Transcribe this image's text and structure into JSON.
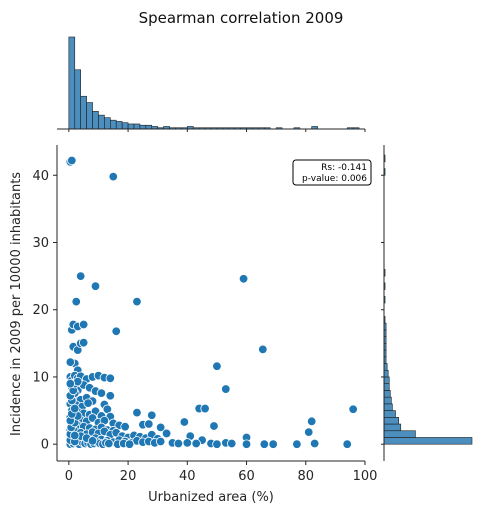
{
  "chart_data": {
    "type": "scatter",
    "title": "Spearman correlation 2009",
    "xlabel": "Urbanized area (%)",
    "ylabel": "Incidence in 2009 per 10000 inhabitants",
    "xlim": [
      -4,
      100
    ],
    "ylim": [
      -2.5,
      44.5
    ],
    "xticks": [
      0,
      20,
      40,
      60,
      80,
      100
    ],
    "yticks": [
      0,
      10,
      20,
      30,
      40
    ],
    "marginal_x": "histogram",
    "marginal_y": "histogram",
    "annotation": {
      "rs": "Rs: -0.141",
      "pvalue": "p-value: 0.006",
      "position": "top-right"
    },
    "colors": {
      "point": "#1f77b4",
      "bar": "#4c8fbf",
      "edge": "#ffffff"
    },
    "points": [
      [
        0.5,
        42
      ],
      [
        1.0,
        42.2
      ],
      [
        15,
        39.8
      ],
      [
        4,
        25
      ],
      [
        9,
        23.5
      ],
      [
        2.5,
        21.2
      ],
      [
        23,
        21.2
      ],
      [
        59,
        24.6
      ],
      [
        65.5,
        14.1
      ],
      [
        1,
        17
      ],
      [
        1.5,
        17.8
      ],
      [
        3,
        17.5
      ],
      [
        5,
        17.8
      ],
      [
        1.5,
        14.5
      ],
      [
        3,
        14
      ],
      [
        4,
        15
      ],
      [
        5,
        15.1
      ],
      [
        16,
        16.8
      ],
      [
        2,
        12
      ],
      [
        0.5,
        12.2
      ],
      [
        50,
        11.6
      ],
      [
        3,
        11
      ],
      [
        0.5,
        10
      ],
      [
        1,
        9.5
      ],
      [
        2,
        10.2
      ],
      [
        3,
        9.8
      ],
      [
        4,
        10.1
      ],
      [
        6,
        9.7
      ],
      [
        8,
        10
      ],
      [
        10,
        10.2
      ],
      [
        12,
        9.9
      ],
      [
        14,
        9.8
      ],
      [
        53,
        8.2
      ],
      [
        1,
        8.5
      ],
      [
        3,
        8
      ],
      [
        5,
        8.8
      ],
      [
        7,
        8.4
      ],
      [
        9,
        7.9
      ],
      [
        11,
        7.6
      ],
      [
        2,
        7
      ],
      [
        4,
        6.6
      ],
      [
        6,
        6.9
      ],
      [
        8,
        6.4
      ],
      [
        14,
        7.2
      ],
      [
        0.5,
        6
      ],
      [
        2.5,
        5.8
      ],
      [
        4.5,
        5.6
      ],
      [
        6.5,
        6.1
      ],
      [
        12,
        5.9
      ],
      [
        13,
        5.2
      ],
      [
        44,
        5.3
      ],
      [
        46,
        5.3
      ],
      [
        96,
        5.2
      ],
      [
        1,
        5
      ],
      [
        3,
        4.8
      ],
      [
        5,
        4.6
      ],
      [
        7,
        4.4
      ],
      [
        9,
        4.9
      ],
      [
        11,
        4.2
      ],
      [
        14,
        4.1
      ],
      [
        23,
        4.7
      ],
      [
        28,
        4.3
      ],
      [
        49,
        2.7
      ],
      [
        0.5,
        4
      ],
      [
        2,
        3.8
      ],
      [
        4,
        3.6
      ],
      [
        6,
        3.4
      ],
      [
        8,
        3.9
      ],
      [
        10,
        3.2
      ],
      [
        12,
        3.5
      ],
      [
        15,
        3.1
      ],
      [
        17,
        2.8
      ],
      [
        19,
        2.6
      ],
      [
        25,
        2.9
      ],
      [
        27,
        3
      ],
      [
        31,
        2.5
      ],
      [
        39,
        3.3
      ],
      [
        82,
        3.4
      ],
      [
        1,
        3
      ],
      [
        3,
        2.8
      ],
      [
        5,
        2.6
      ],
      [
        7,
        2.4
      ],
      [
        9,
        2.2
      ],
      [
        11,
        2.5
      ],
      [
        13,
        2.1
      ],
      [
        15,
        2
      ],
      [
        0.5,
        2.1
      ],
      [
        2,
        1.9
      ],
      [
        4,
        1.7
      ],
      [
        6,
        1.5
      ],
      [
        8,
        1.8
      ],
      [
        10,
        1.6
      ],
      [
        12,
        1.9
      ],
      [
        14,
        1.4
      ],
      [
        16,
        1.7
      ],
      [
        18,
        1.2
      ],
      [
        20,
        1.0
      ],
      [
        22,
        1.3
      ],
      [
        24,
        1.1
      ],
      [
        26,
        0.9
      ],
      [
        28,
        1.4
      ],
      [
        30,
        0.8
      ],
      [
        33,
        1.6
      ],
      [
        41,
        1.2
      ],
      [
        45,
        0.6
      ],
      [
        60,
        1.0
      ],
      [
        81,
        1.8
      ],
      [
        1,
        1
      ],
      [
        3,
        0.8
      ],
      [
        5,
        0.6
      ],
      [
        7,
        0.4
      ],
      [
        9,
        0.9
      ],
      [
        11,
        0.7
      ],
      [
        13,
        0.5
      ],
      [
        15,
        0.3
      ],
      [
        17,
        0.6
      ],
      [
        19,
        0.4
      ],
      [
        21,
        0.2
      ],
      [
        23,
        0.5
      ],
      [
        25,
        0.3
      ],
      [
        27,
        0.4
      ],
      [
        29,
        0.2
      ],
      [
        31,
        0.4
      ],
      [
        35,
        0.2
      ],
      [
        37,
        0.1
      ],
      [
        40,
        0.2
      ],
      [
        43,
        0.1
      ],
      [
        48,
        0.1
      ],
      [
        50,
        0.0
      ],
      [
        53,
        0.2
      ],
      [
        55,
        0.1
      ],
      [
        60,
        0.0
      ],
      [
        66,
        0.0
      ],
      [
        69,
        0.0
      ],
      [
        77,
        0.0
      ],
      [
        83,
        0.1
      ],
      [
        94,
        0.0
      ],
      [
        0.5,
        0.0
      ],
      [
        1.5,
        0.1
      ],
      [
        2.5,
        0.2
      ],
      [
        3.5,
        0.0
      ],
      [
        4.5,
        0.3
      ],
      [
        5.5,
        0.1
      ],
      [
        6.5,
        0.2
      ],
      [
        7.5,
        0.0
      ],
      [
        8.5,
        0.1
      ],
      [
        9.5,
        0.3
      ],
      [
        10.5,
        0.1
      ],
      [
        11.5,
        0.0
      ],
      [
        12.5,
        0.2
      ],
      [
        13.5,
        0.1
      ],
      [
        16.5,
        0.0
      ],
      [
        18.5,
        0.1
      ],
      [
        20.5,
        0.0
      ],
      [
        0.5,
        0.6
      ],
      [
        2,
        0.4
      ],
      [
        4,
        1.2
      ],
      [
        6,
        0.9
      ],
      [
        8,
        0.5
      ],
      [
        0.5,
        1.5
      ],
      [
        2,
        1.3
      ],
      [
        0.8,
        2.5
      ],
      [
        2,
        3.2
      ],
      [
        0.5,
        3.5
      ],
      [
        3,
        4.2
      ],
      [
        1,
        4.5
      ],
      [
        2,
        5.3
      ],
      [
        1,
        6.5
      ],
      [
        2,
        7.6
      ],
      [
        0.5,
        7.2
      ],
      [
        1.5,
        8.0
      ],
      [
        2,
        9
      ],
      [
        3,
        9.3
      ],
      [
        0.5,
        9.0
      ]
    ],
    "x_hist": {
      "bin_edges": [
        0,
        2,
        4,
        6,
        8,
        10,
        12,
        14,
        16,
        18,
        20,
        22,
        24,
        26,
        28,
        30,
        32,
        34,
        36,
        38,
        40,
        42,
        44,
        46,
        48,
        50,
        52,
        54,
        56,
        58,
        60,
        62,
        64,
        66,
        68,
        70,
        72,
        74,
        76,
        78,
        80,
        82,
        84,
        86,
        88,
        90,
        92,
        94,
        96,
        98
      ],
      "counts": [
        73,
        47,
        26,
        21,
        14,
        11,
        9,
        7,
        6,
        5,
        4,
        4,
        3,
        3,
        2,
        1,
        2,
        1,
        1,
        1,
        2,
        1,
        1,
        1,
        1,
        1,
        1,
        1,
        1,
        1,
        1,
        1,
        1,
        1,
        0,
        1,
        0,
        0,
        1,
        0,
        0,
        2,
        0,
        0,
        0,
        0,
        0,
        1,
        1
      ]
    },
    "y_hist": {
      "bin_edges": [
        0,
        1,
        2,
        3,
        4,
        5,
        6,
        7,
        8,
        9,
        10,
        11,
        12,
        13,
        14,
        15,
        16,
        17,
        18,
        19,
        20,
        21,
        22,
        23,
        24,
        25,
        26,
        27,
        28,
        29,
        30,
        31,
        32,
        33,
        34,
        35,
        36,
        37,
        38,
        39,
        40,
        41,
        42,
        43
      ],
      "counts": [
        84,
        30,
        16,
        14,
        11,
        8,
        7,
        6,
        5,
        5,
        4,
        3,
        2,
        2,
        2,
        2,
        2,
        2,
        1,
        0,
        0,
        1,
        0,
        1,
        0,
        1,
        0,
        0,
        0,
        0,
        0,
        0,
        0,
        0,
        0,
        0,
        0,
        0,
        0,
        0,
        1,
        0,
        1
      ]
    }
  }
}
